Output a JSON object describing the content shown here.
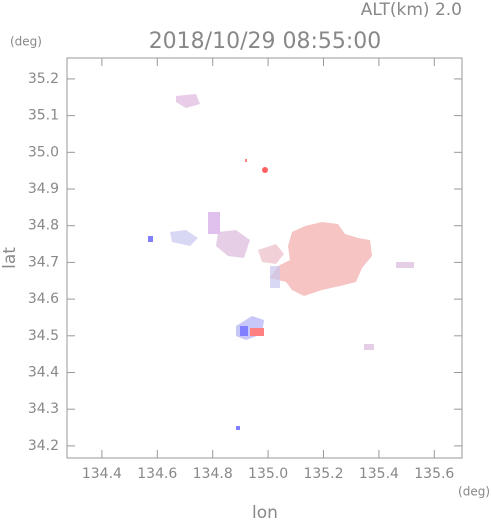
{
  "chart_data": {
    "type": "map",
    "title": "2018/10/29 08:55:00",
    "subtitle": "ALT(km) 2.0",
    "x_label": "lon",
    "y_label": "lat",
    "x_unit": "(deg)",
    "y_unit": "(deg)",
    "xlim": [
      134.274,
      135.7
    ],
    "ylim": [
      34.167,
      35.257
    ],
    "xticks": [
      134.4,
      134.6,
      134.8,
      {
        "value": 135,
        "label": "135.0"
      },
      135.2,
      135.4,
      135.6
    ],
    "yticks": [
      34.2,
      34.3,
      34.4,
      34.5,
      34.6,
      34.7,
      34.8,
      34.9,
      {
        "value": 35,
        "label": "35.0"
      },
      35.1,
      35.2
    ]
  }
}
